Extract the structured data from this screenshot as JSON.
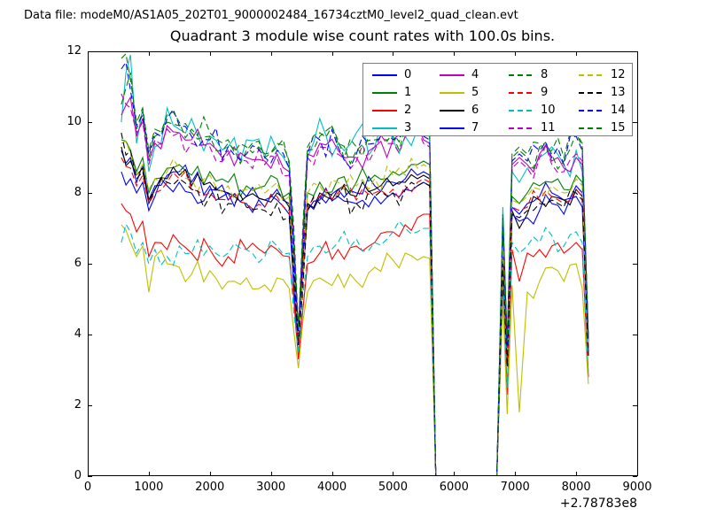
{
  "header": {
    "data_file_label": "Data file: modeM0/AS1A05_202T01_9000002484_16734cztM0_level2_quad_clean.evt"
  },
  "chart_data": {
    "type": "line",
    "title": "Quadrant 3 module wise count rates with 100.0s bins.",
    "xlabel": "",
    "ylabel": "",
    "xlim": [
      0,
      9000
    ],
    "ylim": [
      0,
      12
    ],
    "x_ticks": [
      0,
      1000,
      2000,
      3000,
      4000,
      5000,
      6000,
      7000,
      8000,
      9000
    ],
    "x_tick_labels": [
      "0",
      "1000",
      "2000",
      "3000",
      "4000",
      "5000",
      "6000",
      "7000",
      "8000",
      "9000"
    ],
    "y_ticks": [
      0,
      2,
      4,
      6,
      8,
      10,
      12
    ],
    "y_tick_labels": [
      "0",
      "2",
      "4",
      "6",
      "8",
      "10",
      "12"
    ],
    "x_offset_label": "+2.78783e8",
    "bin_seconds": 100.0,
    "grid": false,
    "legend": {
      "position": "upper center",
      "ncol": 4,
      "order": "column-major",
      "entries": [
        "0",
        "1",
        "2",
        "3",
        "4",
        "5",
        "6",
        "7",
        "8",
        "9",
        "10",
        "11",
        "12",
        "13",
        "14",
        "15"
      ]
    },
    "x_anchors": [
      550,
      700,
      800,
      900,
      1000,
      1100,
      1300,
      1500,
      1700,
      2000,
      2300,
      2600,
      2900,
      3100,
      3300,
      3450,
      3600,
      3800,
      4100,
      4400,
      4700,
      5000,
      5200,
      5400,
      5500,
      5600,
      5700,
      6700,
      6800,
      6870,
      6950,
      7070,
      7200,
      7400,
      7600,
      7800,
      8000,
      8100,
      8200
    ],
    "series": [
      {
        "name": "0",
        "color": "#0000ff",
        "dash": false,
        "noise": 0.35,
        "y": [
          9.2,
          9.0,
          8.3,
          8.8,
          7.8,
          8.2,
          8.5,
          8.6,
          8.3,
          8.2,
          8.0,
          7.9,
          7.8,
          8.1,
          7.7,
          3.8,
          7.7,
          7.9,
          8.1,
          8.0,
          8.2,
          8.3,
          8.4,
          8.5,
          8.6,
          8.5,
          0,
          0,
          6.3,
          3.3,
          7.6,
          7.4,
          7.7,
          7.9,
          8.0,
          7.8,
          8.2,
          8.0,
          3.6
        ]
      },
      {
        "name": "1",
        "color": "#008000",
        "dash": false,
        "noise": 0.35,
        "y": [
          9.5,
          9.2,
          8.6,
          9.0,
          8.0,
          8.4,
          8.7,
          8.8,
          8.5,
          8.6,
          8.3,
          8.2,
          8.2,
          8.4,
          8.0,
          3.9,
          8.0,
          8.3,
          8.4,
          8.3,
          8.5,
          8.6,
          8.6,
          8.8,
          8.9,
          8.8,
          0,
          0,
          6.6,
          3.5,
          7.9,
          7.7,
          8.0,
          8.2,
          8.3,
          8.1,
          8.5,
          8.3,
          3.7
        ]
      },
      {
        "name": "2",
        "color": "#ff0000",
        "dash": false,
        "noise": 0.35,
        "y": [
          7.7,
          7.4,
          6.9,
          7.2,
          6.2,
          6.6,
          6.4,
          6.6,
          6.3,
          6.4,
          6.2,
          6.4,
          6.3,
          6.4,
          6.2,
          3.3,
          6.0,
          6.3,
          6.4,
          6.5,
          6.6,
          6.9,
          7.1,
          7.3,
          7.4,
          7.4,
          0,
          0,
          5.5,
          2.3,
          6.4,
          5.5,
          6.3,
          6.4,
          6.5,
          6.3,
          6.6,
          6.4,
          2.8
        ]
      },
      {
        "name": "3",
        "color": "#00bfbf",
        "dash": false,
        "noise": 0.6,
        "y": [
          10.0,
          11.9,
          9.4,
          10.4,
          8.6,
          9.3,
          10.4,
          9.8,
          10.1,
          9.6,
          9.3,
          9.5,
          9.0,
          9.2,
          8.7,
          4.0,
          9.0,
          10.1,
          9.4,
          9.7,
          9.3,
          9.5,
          9.6,
          9.8,
          9.7,
          9.6,
          0,
          0,
          7.6,
          3.6,
          8.6,
          8.3,
          8.7,
          9.0,
          9.3,
          8.8,
          9.2,
          8.6,
          3.8
        ]
      },
      {
        "name": "4",
        "color": "#bf00bf",
        "dash": false,
        "noise": 0.45,
        "y": [
          10.2,
          10.7,
          9.6,
          10.1,
          8.9,
          9.4,
          9.9,
          9.7,
          9.5,
          9.4,
          9.2,
          9.0,
          8.9,
          9.1,
          8.6,
          4.0,
          9.1,
          9.4,
          9.2,
          9.0,
          9.3,
          9.5,
          9.7,
          9.9,
          9.5,
          9.4,
          0,
          0,
          7.0,
          3.6,
          8.8,
          9.0,
          8.8,
          9.1,
          8.9,
          8.7,
          9.0,
          8.8,
          3.8
        ]
      },
      {
        "name": "5",
        "color": "#bfbf00",
        "dash": false,
        "noise": 0.35,
        "y": [
          7.1,
          6.6,
          6.2,
          6.5,
          5.2,
          6.2,
          6.0,
          5.9,
          5.7,
          5.8,
          5.5,
          5.6,
          5.4,
          5.6,
          5.3,
          3.05,
          5.2,
          5.6,
          5.7,
          5.5,
          5.9,
          6.1,
          6.3,
          6.1,
          6.2,
          6.15,
          0,
          0,
          5.0,
          1.75,
          5.4,
          1.8,
          5.2,
          5.5,
          5.9,
          5.5,
          6.0,
          5.3,
          2.6
        ]
      },
      {
        "name": "6",
        "color": "#000000",
        "dash": false,
        "noise": 0.35,
        "y": [
          9.3,
          8.9,
          8.5,
          8.7,
          7.7,
          8.1,
          8.4,
          8.5,
          8.2,
          8.3,
          8.0,
          7.9,
          7.8,
          8.0,
          7.6,
          3.8,
          7.7,
          8.0,
          8.1,
          7.9,
          8.1,
          8.2,
          8.3,
          8.4,
          8.5,
          8.4,
          0,
          0,
          6.2,
          3.2,
          7.5,
          7.0,
          7.4,
          7.8,
          7.9,
          7.8,
          8.1,
          7.9,
          3.5
        ]
      },
      {
        "name": "7",
        "color": "#0000ff",
        "dash": false,
        "noise": 0.35,
        "y": [
          8.6,
          8.4,
          8.0,
          8.3,
          7.5,
          7.9,
          8.2,
          8.3,
          8.0,
          8.1,
          7.8,
          7.7,
          7.6,
          7.8,
          7.4,
          3.7,
          7.5,
          7.8,
          7.9,
          7.7,
          7.9,
          8.0,
          8.1,
          8.2,
          8.3,
          8.2,
          0,
          0,
          6.0,
          3.1,
          7.4,
          7.2,
          7.3,
          7.5,
          7.7,
          7.4,
          7.9,
          7.6,
          3.4
        ]
      },
      {
        "name": "8",
        "color": "#008000",
        "dash": true,
        "noise": 0.5,
        "y": [
          10.5,
          11.4,
          9.8,
          10.3,
          9.0,
          9.6,
          10.0,
          9.9,
          9.7,
          9.6,
          9.4,
          9.2,
          9.0,
          9.3,
          8.8,
          4.1,
          9.2,
          9.6,
          9.4,
          9.2,
          9.5,
          9.6,
          9.8,
          10.0,
          9.7,
          9.6,
          0,
          0,
          7.2,
          3.7,
          9.0,
          9.2,
          9.0,
          9.3,
          9.1,
          8.9,
          9.7,
          9.3,
          3.9
        ]
      },
      {
        "name": "9",
        "color": "#ff0000",
        "dash": true,
        "noise": 0.4,
        "y": [
          9.0,
          8.7,
          8.2,
          8.5,
          7.7,
          8.0,
          8.3,
          8.4,
          8.1,
          8.0,
          7.8,
          7.7,
          7.6,
          7.9,
          7.5,
          3.8,
          7.6,
          7.9,
          8.0,
          7.8,
          8.0,
          8.1,
          8.2,
          8.3,
          8.4,
          8.3,
          0,
          0,
          6.1,
          3.2,
          7.6,
          7.5,
          7.6,
          7.8,
          7.9,
          7.7,
          8.1,
          7.9,
          3.5
        ]
      },
      {
        "name": "10",
        "color": "#00bfbf",
        "dash": true,
        "noise": 0.4,
        "y": [
          6.6,
          6.9,
          6.3,
          6.6,
          6.0,
          6.4,
          6.2,
          6.5,
          6.3,
          6.5,
          6.3,
          6.4,
          6.2,
          6.5,
          6.3,
          3.5,
          6.2,
          6.5,
          6.6,
          6.7,
          6.6,
          6.9,
          7.0,
          6.9,
          7.0,
          7.0,
          0,
          0,
          5.8,
          2.5,
          6.6,
          6.3,
          6.5,
          6.6,
          6.8,
          6.5,
          6.9,
          6.6,
          2.9
        ]
      },
      {
        "name": "11",
        "color": "#bf00bf",
        "dash": true,
        "noise": 0.45,
        "y": [
          10.8,
          10.4,
          9.7,
          10.0,
          8.8,
          9.5,
          9.8,
          9.7,
          9.4,
          9.3,
          9.1,
          8.9,
          8.8,
          9.0,
          8.5,
          4.0,
          9.0,
          9.3,
          9.1,
          8.9,
          9.2,
          9.4,
          9.6,
          9.8,
          9.4,
          9.3,
          0,
          0,
          7.0,
          3.6,
          8.7,
          8.9,
          8.7,
          9.0,
          8.8,
          8.6,
          9.1,
          8.9,
          3.8
        ]
      },
      {
        "name": "12",
        "color": "#bfbf00",
        "dash": true,
        "noise": 0.4,
        "y": [
          9.4,
          9.1,
          8.5,
          8.8,
          8.1,
          8.4,
          8.6,
          8.7,
          8.4,
          8.5,
          8.2,
          8.1,
          8.0,
          8.3,
          7.9,
          3.9,
          8.0,
          8.2,
          8.3,
          8.2,
          8.4,
          8.5,
          8.5,
          8.7,
          8.8,
          8.7,
          0,
          0,
          6.5,
          3.4,
          7.8,
          7.7,
          7.9,
          8.1,
          8.2,
          8.0,
          8.4,
          8.2,
          3.6
        ]
      },
      {
        "name": "13",
        "color": "#000000",
        "dash": true,
        "noise": 0.4,
        "y": [
          9.7,
          9.2,
          8.4,
          8.6,
          7.8,
          8.1,
          8.3,
          8.4,
          8.1,
          7.9,
          7.7,
          7.6,
          7.5,
          7.7,
          7.3,
          3.7,
          7.5,
          7.7,
          7.9,
          7.7,
          7.9,
          8.0,
          8.1,
          8.2,
          8.3,
          8.2,
          0,
          0,
          6.0,
          3.1,
          7.4,
          7.3,
          7.5,
          7.7,
          7.8,
          7.6,
          8.0,
          7.8,
          3.4
        ]
      },
      {
        "name": "14",
        "color": "#0000ff",
        "dash": true,
        "noise": 0.5,
        "y": [
          11.5,
          10.9,
          9.9,
          10.2,
          9.1,
          9.7,
          10.1,
          9.9,
          9.6,
          9.5,
          9.3,
          9.1,
          9.0,
          9.2,
          8.7,
          4.1,
          9.1,
          9.5,
          9.3,
          9.1,
          9.4,
          9.5,
          9.7,
          9.9,
          9.6,
          9.5,
          0,
          0,
          7.3,
          3.7,
          8.9,
          9.1,
          8.9,
          9.2,
          9.0,
          8.8,
          9.6,
          9.2,
          3.9
        ]
      },
      {
        "name": "15",
        "color": "#008000",
        "dash": true,
        "noise": 0.5,
        "y": [
          11.8,
          11.2,
          10.0,
          10.4,
          9.2,
          9.8,
          10.2,
          10.0,
          9.8,
          9.7,
          9.5,
          9.3,
          9.1,
          9.4,
          8.9,
          4.2,
          9.3,
          9.7,
          9.5,
          9.3,
          9.6,
          9.7,
          9.9,
          10.1,
          9.8,
          9.7,
          0,
          0,
          7.4,
          3.8,
          9.1,
          9.3,
          9.1,
          9.4,
          9.2,
          9.0,
          9.7,
          9.4,
          4.0
        ]
      }
    ]
  },
  "colors": {
    "axis": "#000000",
    "background": "#ffffff",
    "legend_border": "#7d7d7d"
  }
}
